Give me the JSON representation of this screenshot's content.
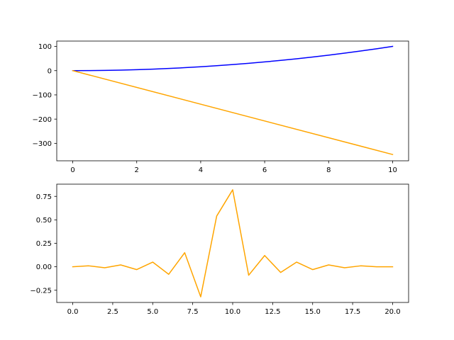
{
  "chart_data": [
    {
      "type": "line",
      "title": "",
      "xlabel": "",
      "ylabel": "",
      "xlim": [
        -0.5,
        10.5
      ],
      "ylim": [
        -372,
        122
      ],
      "xticks": [
        0,
        2,
        4,
        6,
        8,
        10
      ],
      "xtick_labels": [
        "0",
        "2",
        "4",
        "6",
        "8",
        "10"
      ],
      "yticks": [
        100,
        0,
        -100,
        -200,
        -300
      ],
      "ytick_labels": [
        "100",
        "0",
        "−100",
        "−200",
        "−300"
      ],
      "grid": false,
      "legend": "none",
      "series": [
        {
          "color": "#0000ff",
          "x": [
            0,
            0.5,
            1,
            1.5,
            2,
            2.5,
            3,
            3.5,
            4,
            4.5,
            5,
            5.5,
            6,
            6.5,
            7,
            7.5,
            8,
            8.5,
            9,
            9.5,
            10
          ],
          "y": [
            0,
            0.25,
            1,
            2.25,
            4,
            6.25,
            9,
            12.25,
            16,
            20.25,
            25,
            30.25,
            36,
            42.25,
            49,
            56.25,
            64,
            72.25,
            81,
            90.25,
            100
          ]
        },
        {
          "color": "#ffa500",
          "x": [
            0,
            10
          ],
          "y": [
            0,
            -346
          ]
        }
      ]
    },
    {
      "type": "line",
      "title": "",
      "xlabel": "",
      "ylabel": "",
      "xlim": [
        -1,
        21
      ],
      "ylim": [
        -0.38,
        0.88
      ],
      "xticks": [
        0,
        2.5,
        5,
        7.5,
        10,
        12.5,
        15,
        17.5,
        20
      ],
      "xtick_labels": [
        "0.0",
        "2.5",
        "5.0",
        "7.5",
        "10.0",
        "12.5",
        "15.0",
        "17.5",
        "20.0"
      ],
      "yticks": [
        0.75,
        0.5,
        0.25,
        0,
        -0.25
      ],
      "ytick_labels": [
        "0.75",
        "0.50",
        "0.25",
        "0.00",
        "−0.25"
      ],
      "grid": false,
      "legend": "none",
      "series": [
        {
          "color": "#ffa500",
          "x": [
            0,
            1,
            2,
            3,
            4,
            5,
            6,
            7,
            8,
            9,
            10,
            11,
            12,
            13,
            14,
            15,
            16,
            17,
            18,
            19,
            20
          ],
          "y": [
            0.0,
            0.01,
            -0.01,
            0.02,
            -0.03,
            0.05,
            -0.08,
            0.15,
            -0.32,
            0.54,
            0.82,
            -0.09,
            0.12,
            -0.06,
            0.05,
            -0.03,
            0.02,
            -0.01,
            0.01,
            0.0,
            0.0
          ]
        }
      ]
    }
  ]
}
